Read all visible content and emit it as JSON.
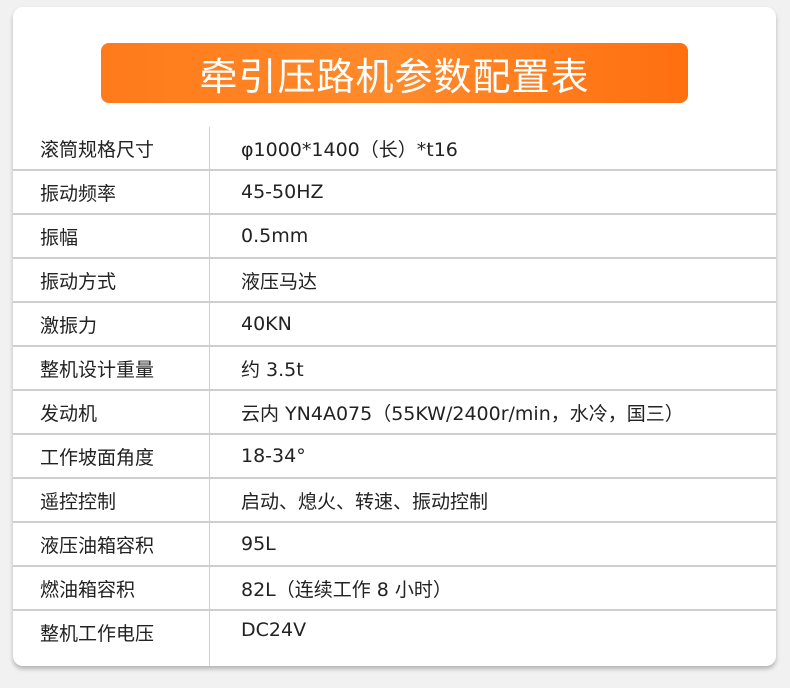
{
  "title": "牵引压路机参数配置表",
  "colors": {
    "banner": "#ff7a1a",
    "text": "#222222"
  },
  "rows": [
    {
      "label": "滚筒规格尺寸",
      "value": "φ1000*1400（长）*t16"
    },
    {
      "label": "振动频率",
      "value": "45-50HZ"
    },
    {
      "label": "振幅",
      "value": "0.5mm"
    },
    {
      "label": "振动方式",
      "value": "液压马达"
    },
    {
      "label": "激振力",
      "value": "40KN"
    },
    {
      "label": "整机设计重量",
      "value": "约 3.5t"
    },
    {
      "label": "发动机",
      "value": "云内 YN4A075（55KW/2400r/min，水冷，国三）"
    },
    {
      "label": "工作坡面角度",
      "value": "18-34°"
    },
    {
      "label": "遥控控制",
      "value": "启动、熄火、转速、振动控制"
    },
    {
      "label": "液压油箱容积",
      "value": "95L"
    },
    {
      "label": "燃油箱容积",
      "value": "82L（连续工作 8 小时）"
    },
    {
      "label": "整机工作电压",
      "value": "DC24V"
    }
  ]
}
